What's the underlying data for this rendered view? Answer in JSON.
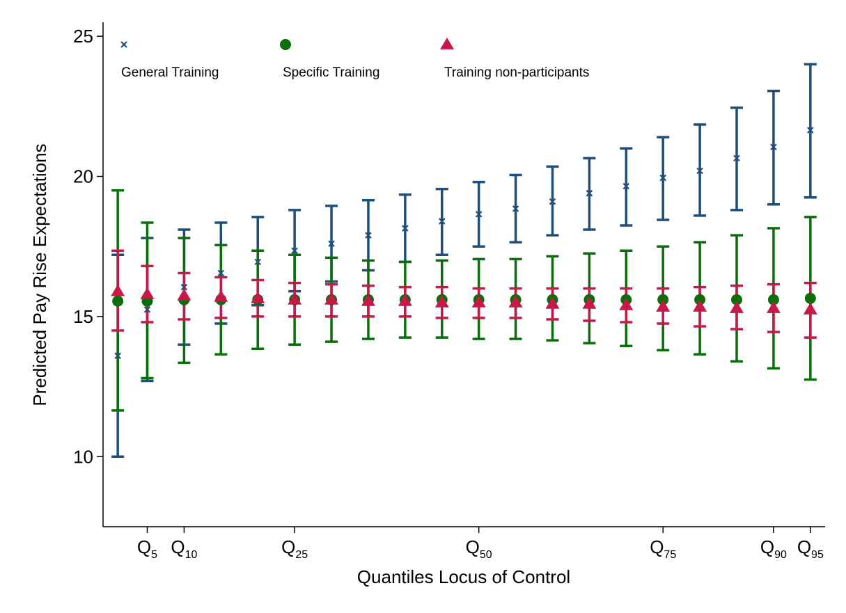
{
  "chart_data": {
    "type": "errorbar",
    "x_label": "Quantiles Locus of Control",
    "y_label": "Predicted Pay Rise Expectations",
    "x": [
      1,
      5,
      10,
      15,
      20,
      25,
      30,
      35,
      40,
      45,
      50,
      55,
      60,
      65,
      70,
      75,
      80,
      85,
      90,
      95
    ],
    "xlim": [
      -1,
      97
    ],
    "xticks": [
      {
        "value": 5,
        "label": "Q5"
      },
      {
        "value": 10,
        "label": "Q10"
      },
      {
        "value": 25,
        "label": "Q25"
      },
      {
        "value": 50,
        "label": "Q50"
      },
      {
        "value": 75,
        "label": "Q75"
      },
      {
        "value": 90,
        "label": "Q90"
      },
      {
        "value": 95,
        "label": "Q95"
      }
    ],
    "ylim": [
      7.5,
      25.5
    ],
    "yticks": [
      10,
      15,
      20,
      25
    ],
    "series": [
      {
        "name": "General Training",
        "color": "#1f4e79",
        "marker": "x",
        "values": [
          13.6,
          15.25,
          16.05,
          16.55,
          16.95,
          17.35,
          17.6,
          17.9,
          18.15,
          18.4,
          18.65,
          18.85,
          19.1,
          19.4,
          19.65,
          19.95,
          20.2,
          20.65,
          21.05,
          21.65
        ],
        "lower": [
          10.0,
          12.7,
          14.0,
          14.75,
          15.4,
          15.9,
          16.25,
          16.65,
          16.95,
          17.2,
          17.5,
          17.65,
          17.9,
          18.1,
          18.25,
          18.45,
          18.6,
          18.8,
          19.0,
          19.25
        ],
        "upper": [
          17.2,
          17.8,
          18.1,
          18.35,
          18.55,
          18.8,
          18.95,
          19.15,
          19.35,
          19.55,
          19.8,
          20.05,
          20.35,
          20.65,
          21.0,
          21.4,
          21.85,
          22.45,
          23.05,
          24.0
        ]
      },
      {
        "name": "Specific Training",
        "color": "#0b6e0b",
        "marker": "circle",
        "values": [
          15.55,
          15.55,
          15.6,
          15.6,
          15.6,
          15.6,
          15.6,
          15.6,
          15.6,
          15.6,
          15.6,
          15.6,
          15.6,
          15.6,
          15.6,
          15.6,
          15.6,
          15.6,
          15.6,
          15.65
        ],
        "lower": [
          11.65,
          12.8,
          13.35,
          13.65,
          13.85,
          14.0,
          14.1,
          14.2,
          14.25,
          14.25,
          14.2,
          14.2,
          14.15,
          14.05,
          13.95,
          13.8,
          13.65,
          13.4,
          13.15,
          12.75
        ],
        "upper": [
          19.5,
          18.35,
          17.8,
          17.55,
          17.35,
          17.2,
          17.1,
          17.0,
          16.95,
          17.0,
          17.05,
          17.05,
          17.15,
          17.25,
          17.35,
          17.5,
          17.65,
          17.9,
          18.15,
          18.55
        ]
      },
      {
        "name": "Training non-participants",
        "color": "#c8184a",
        "marker": "triangle",
        "values": [
          15.9,
          15.8,
          15.75,
          15.7,
          15.65,
          15.6,
          15.6,
          15.55,
          15.55,
          15.5,
          15.5,
          15.5,
          15.45,
          15.45,
          15.4,
          15.35,
          15.35,
          15.3,
          15.3,
          15.25
        ],
        "lower": [
          14.5,
          14.8,
          14.9,
          14.95,
          15.0,
          15.0,
          15.0,
          15.0,
          15.0,
          14.95,
          14.95,
          14.95,
          14.9,
          14.85,
          14.8,
          14.75,
          14.65,
          14.55,
          14.45,
          14.25
        ],
        "upper": [
          17.35,
          16.8,
          16.55,
          16.4,
          16.3,
          16.2,
          16.15,
          16.1,
          16.05,
          16.05,
          16.0,
          16.0,
          16.0,
          16.0,
          16.0,
          16.0,
          16.05,
          16.1,
          16.15,
          16.2
        ]
      }
    ]
  }
}
